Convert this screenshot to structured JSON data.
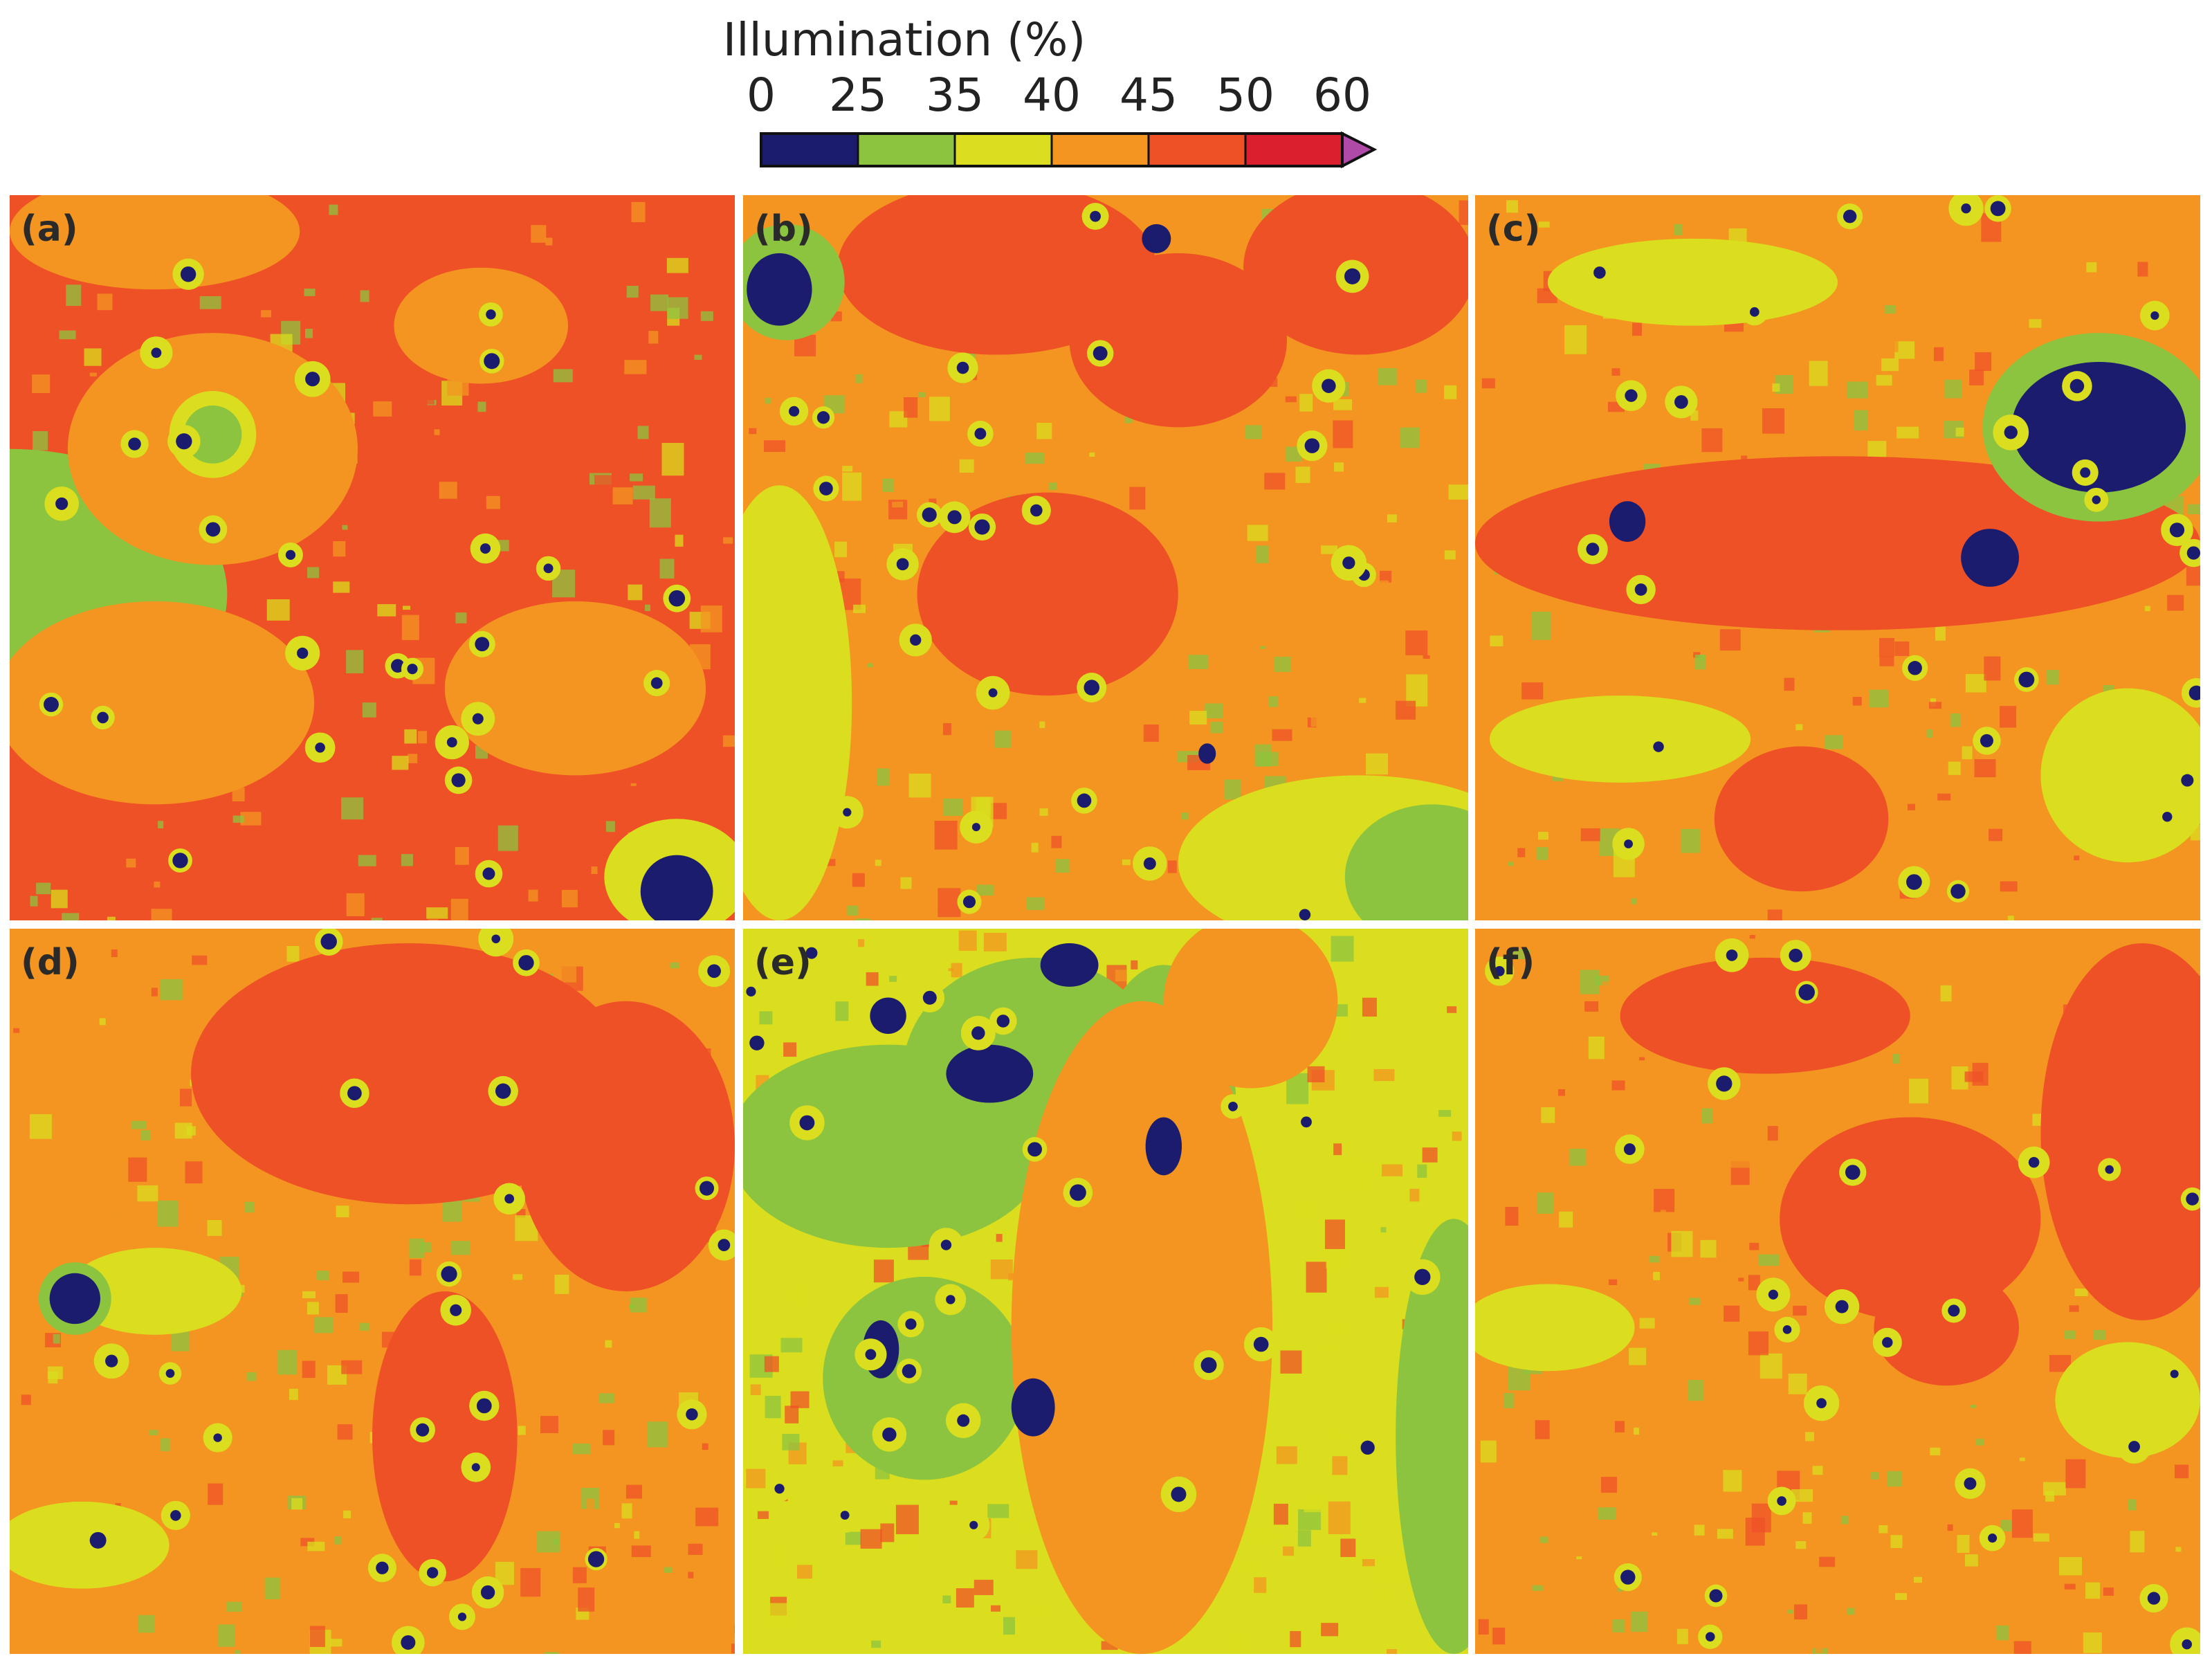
{
  "chart_data": {
    "type": "heatmap",
    "colorbar": {
      "title": "Illumination (%)",
      "tick_labels": [
        "0",
        "25",
        "35",
        "40",
        "45",
        "50",
        "60"
      ],
      "bins": [
        {
          "from": 0,
          "to": 25,
          "color": "#1b1c6e"
        },
        {
          "from": 25,
          "to": 35,
          "color": "#8cc43f"
        },
        {
          "from": 35,
          "to": 40,
          "color": "#dade1e"
        },
        {
          "from": 40,
          "to": 45,
          "color": "#f39520"
        },
        {
          "from": 45,
          "to": 50,
          "color": "#ef5127"
        },
        {
          "from": 50,
          "to": 60,
          "color": "#dc1f2e"
        }
      ],
      "extend_max_color": "#b04aa8"
    },
    "panels": [
      {
        "label": "(a)",
        "background": "#ef5127",
        "regions": [
          {
            "c": 1,
            "x": 0.0,
            "y": 0.55,
            "rx": 0.3,
            "ry": 0.2
          },
          {
            "c": 3,
            "x": 0.28,
            "y": 0.35,
            "rx": 0.2,
            "ry": 0.16
          },
          {
            "c": 3,
            "x": 0.2,
            "y": 0.7,
            "rx": 0.22,
            "ry": 0.14
          },
          {
            "c": 3,
            "x": 0.65,
            "y": 0.18,
            "rx": 0.12,
            "ry": 0.08
          },
          {
            "c": 3,
            "x": 0.78,
            "y": 0.68,
            "rx": 0.18,
            "ry": 0.12
          },
          {
            "c": 3,
            "x": 0.2,
            "y": 0.05,
            "rx": 0.2,
            "ry": 0.08
          },
          {
            "c": 2,
            "x": 0.28,
            "y": 0.33,
            "rx": 0.06,
            "ry": 0.06
          },
          {
            "c": 1,
            "x": 0.28,
            "y": 0.33,
            "rx": 0.04,
            "ry": 0.04
          },
          {
            "c": 2,
            "x": 0.92,
            "y": 0.94,
            "rx": 0.1,
            "ry": 0.08
          },
          {
            "c": 0,
            "x": 0.92,
            "y": 0.96,
            "rx": 0.05,
            "ry": 0.05
          }
        ]
      },
      {
        "label": "(b)",
        "background": "#f39520",
        "regions": [
          {
            "c": 4,
            "x": 0.35,
            "y": 0.1,
            "rx": 0.22,
            "ry": 0.12
          },
          {
            "c": 4,
            "x": 0.85,
            "y": 0.1,
            "rx": 0.16,
            "ry": 0.12
          },
          {
            "c": 4,
            "x": 0.42,
            "y": 0.55,
            "rx": 0.18,
            "ry": 0.14
          },
          {
            "c": 4,
            "x": 0.6,
            "y": 0.2,
            "rx": 0.15,
            "ry": 0.12
          },
          {
            "c": 2,
            "x": 0.05,
            "y": 0.7,
            "rx": 0.1,
            "ry": 0.3
          },
          {
            "c": 2,
            "x": 0.85,
            "y": 0.92,
            "rx": 0.25,
            "ry": 0.12
          },
          {
            "c": 1,
            "x": 0.95,
            "y": 0.94,
            "rx": 0.12,
            "ry": 0.1
          },
          {
            "c": 1,
            "x": 0.06,
            "y": 0.12,
            "rx": 0.08,
            "ry": 0.08
          },
          {
            "c": 0,
            "x": 0.05,
            "y": 0.13,
            "rx": 0.045,
            "ry": 0.05
          },
          {
            "c": 0,
            "x": 0.57,
            "y": 0.06,
            "rx": 0.02,
            "ry": 0.02
          },
          {
            "c": 0,
            "x": 0.64,
            "y": 0.77,
            "rx": 0.012,
            "ry": 0.014
          }
        ]
      },
      {
        "label": "(c)",
        "background": "#f39520",
        "regions": [
          {
            "c": 4,
            "x": 0.5,
            "y": 0.48,
            "rx": 0.5,
            "ry": 0.12
          },
          {
            "c": 4,
            "x": 0.45,
            "y": 0.86,
            "rx": 0.12,
            "ry": 0.1
          },
          {
            "c": 2,
            "x": 0.3,
            "y": 0.12,
            "rx": 0.2,
            "ry": 0.06
          },
          {
            "c": 2,
            "x": 0.2,
            "y": 0.75,
            "rx": 0.18,
            "ry": 0.06
          },
          {
            "c": 2,
            "x": 0.9,
            "y": 0.8,
            "rx": 0.12,
            "ry": 0.12
          },
          {
            "c": 1,
            "x": 0.86,
            "y": 0.32,
            "rx": 0.16,
            "ry": 0.13
          },
          {
            "c": 0,
            "x": 0.86,
            "y": 0.32,
            "rx": 0.12,
            "ry": 0.09
          },
          {
            "c": 0,
            "x": 0.71,
            "y": 0.5,
            "rx": 0.04,
            "ry": 0.04
          },
          {
            "c": 0,
            "x": 0.21,
            "y": 0.45,
            "rx": 0.025,
            "ry": 0.028
          }
        ]
      },
      {
        "label": "(d)",
        "background": "#f39520",
        "regions": [
          {
            "c": 4,
            "x": 0.55,
            "y": 0.2,
            "rx": 0.3,
            "ry": 0.18
          },
          {
            "c": 4,
            "x": 0.85,
            "y": 0.3,
            "rx": 0.15,
            "ry": 0.2
          },
          {
            "c": 4,
            "x": 0.6,
            "y": 0.7,
            "rx": 0.1,
            "ry": 0.2
          },
          {
            "c": 2,
            "x": 0.2,
            "y": 0.5,
            "rx": 0.12,
            "ry": 0.06
          },
          {
            "c": 2,
            "x": 0.1,
            "y": 0.85,
            "rx": 0.12,
            "ry": 0.06
          },
          {
            "c": 1,
            "x": 0.09,
            "y": 0.51,
            "rx": 0.05,
            "ry": 0.05
          },
          {
            "c": 0,
            "x": 0.09,
            "y": 0.51,
            "rx": 0.035,
            "ry": 0.035
          }
        ]
      },
      {
        "label": "(e)",
        "background": "#dade1e",
        "regions": [
          {
            "c": 1,
            "x": 0.2,
            "y": 0.3,
            "rx": 0.22,
            "ry": 0.14
          },
          {
            "c": 1,
            "x": 0.25,
            "y": 0.62,
            "rx": 0.14,
            "ry": 0.14
          },
          {
            "c": 1,
            "x": 0.4,
            "y": 0.2,
            "rx": 0.18,
            "ry": 0.16
          },
          {
            "c": 1,
            "x": 0.58,
            "y": 0.25,
            "rx": 0.1,
            "ry": 0.2
          },
          {
            "c": 1,
            "x": 0.98,
            "y": 0.7,
            "rx": 0.08,
            "ry": 0.3
          },
          {
            "c": 3,
            "x": 0.55,
            "y": 0.55,
            "rx": 0.18,
            "ry": 0.45
          },
          {
            "c": 3,
            "x": 0.7,
            "y": 0.1,
            "rx": 0.12,
            "ry": 0.12
          },
          {
            "c": 0,
            "x": 0.34,
            "y": 0.2,
            "rx": 0.06,
            "ry": 0.04
          },
          {
            "c": 0,
            "x": 0.45,
            "y": 0.05,
            "rx": 0.04,
            "ry": 0.03
          },
          {
            "c": 0,
            "x": 0.2,
            "y": 0.12,
            "rx": 0.025,
            "ry": 0.025
          },
          {
            "c": 0,
            "x": 0.58,
            "y": 0.3,
            "rx": 0.025,
            "ry": 0.04
          },
          {
            "c": 0,
            "x": 0.4,
            "y": 0.66,
            "rx": 0.03,
            "ry": 0.04
          },
          {
            "c": 0,
            "x": 0.19,
            "y": 0.58,
            "rx": 0.025,
            "ry": 0.04
          }
        ]
      },
      {
        "label": "(f)",
        "background": "#f39520",
        "regions": [
          {
            "c": 4,
            "x": 0.6,
            "y": 0.4,
            "rx": 0.18,
            "ry": 0.14
          },
          {
            "c": 4,
            "x": 0.92,
            "y": 0.28,
            "rx": 0.14,
            "ry": 0.26
          },
          {
            "c": 4,
            "x": 0.4,
            "y": 0.12,
            "rx": 0.2,
            "ry": 0.08
          },
          {
            "c": 4,
            "x": 0.65,
            "y": 0.55,
            "rx": 0.1,
            "ry": 0.08
          },
          {
            "c": 2,
            "x": 0.1,
            "y": 0.55,
            "rx": 0.12,
            "ry": 0.06
          },
          {
            "c": 2,
            "x": 0.9,
            "y": 0.65,
            "rx": 0.1,
            "ry": 0.08
          }
        ]
      }
    ]
  }
}
